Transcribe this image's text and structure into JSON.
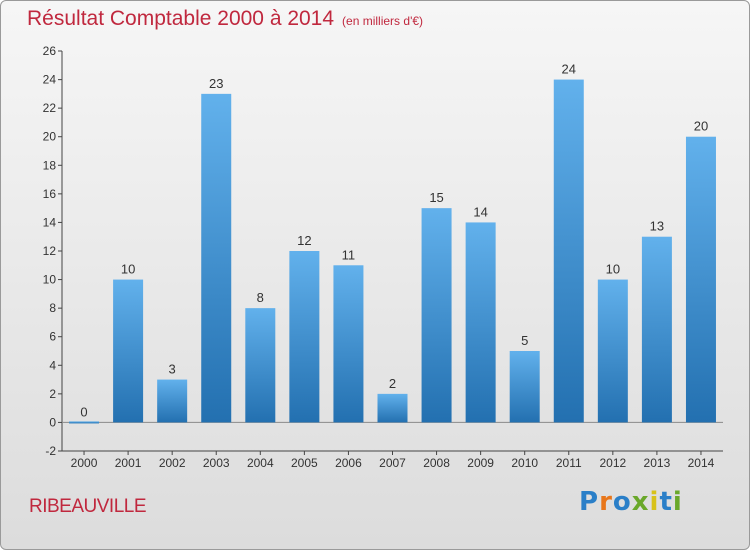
{
  "title": "Résultat Comptable 2000 à 2014",
  "unit": "(en milliers d'€)",
  "city": "RIBEAUVILLE",
  "logo": {
    "text": "Proxiti",
    "letter_colors": [
      "#2a7fc8",
      "#e8761a",
      "#2a7fc8",
      "#6aa82a",
      "#d8c21a",
      "#2a7fc8",
      "#6aa82a"
    ]
  },
  "colors": {
    "title": "#c0283e",
    "bar_light": "#62b1ec",
    "bar_dark": "#2370b0",
    "axis": "#444444"
  },
  "chart_data": {
    "type": "bar",
    "title": "Résultat Comptable 2000 à 2014",
    "subtitle": "(en milliers d'€)",
    "xlabel": "",
    "ylabel": "",
    "categories": [
      "2000",
      "2001",
      "2002",
      "2003",
      "2004",
      "2005",
      "2006",
      "2007",
      "2008",
      "2009",
      "2010",
      "2011",
      "2012",
      "2013",
      "2014"
    ],
    "values": [
      0,
      10,
      3,
      23,
      8,
      12,
      11,
      2,
      15,
      14,
      5,
      24,
      10,
      13,
      20
    ],
    "data_labels": [
      "0",
      "10",
      "3",
      "23",
      "8",
      "12",
      "11",
      "2",
      "15",
      "14",
      "5",
      "24",
      "10",
      "13",
      "20"
    ],
    "ylim": [
      -2,
      26
    ],
    "yticks": [
      -2,
      0,
      2,
      4,
      6,
      8,
      10,
      12,
      14,
      16,
      18,
      20,
      22,
      24,
      26
    ],
    "grid": false
  }
}
